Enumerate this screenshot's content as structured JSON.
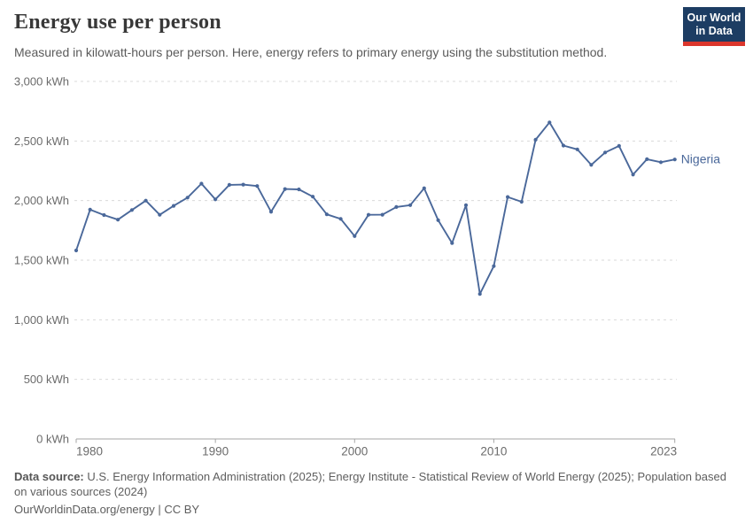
{
  "header": {
    "title": "Energy use per person",
    "subtitle": "Measured in kilowatt-hours per person. Here, energy refers to primary energy using the substitution method."
  },
  "logo": {
    "line1": "Our World",
    "line2": "in Data",
    "bg_color": "#1d3d63",
    "bar_color": "#dc362c",
    "text_color": "#ffffff"
  },
  "chart_data": {
    "type": "line",
    "title": "Energy use per person",
    "ylabel_unit_suffix": " kWh",
    "ylim": [
      0,
      3000
    ],
    "yticks": [
      0,
      500,
      1000,
      1500,
      2000,
      2500,
      3000
    ],
    "x_range": [
      1980,
      2023
    ],
    "xticks": [
      1980,
      1990,
      2000,
      2010,
      2023
    ],
    "grid": "horizontal-dashed",
    "legend_position": "end-of-line-label",
    "series": [
      {
        "name": "Nigeria",
        "color": "#4a689a",
        "x": [
          1980,
          1981,
          1982,
          1983,
          1984,
          1985,
          1986,
          1987,
          1988,
          1989,
          1990,
          1991,
          1992,
          1993,
          1994,
          1995,
          1996,
          1997,
          1998,
          1999,
          2000,
          2001,
          2002,
          2003,
          2004,
          2005,
          2006,
          2007,
          2008,
          2009,
          2010,
          2011,
          2012,
          2013,
          2014,
          2015,
          2016,
          2017,
          2018,
          2019,
          2020,
          2021,
          2022,
          2023
        ],
        "values": [
          1582,
          1924,
          1879,
          1840,
          1921,
          2000,
          1881,
          1956,
          2025,
          2142,
          2010,
          2132,
          2134,
          2122,
          1906,
          2097,
          2094,
          2033,
          1885,
          1847,
          1702,
          1881,
          1882,
          1946,
          1962,
          2104,
          1836,
          1643,
          1962,
          1216,
          1450,
          2030,
          1990,
          2511,
          2656,
          2462,
          2430,
          2300,
          2404,
          2459,
          2218,
          2347,
          2322,
          2345
        ]
      }
    ],
    "axis_text_color": "#6b6b6b",
    "grid_color": "#d9d9d9",
    "axis_line_color": "#a6a6a6"
  },
  "footer": {
    "source_label": "Data source:",
    "source_text": " U.S. Energy Information Administration (2025); Energy Institute - Statistical Review of World Energy (2025); Population based on various sources (2024)",
    "url": "OurWorldinData.org/energy",
    "license_suffix": " | CC BY"
  }
}
